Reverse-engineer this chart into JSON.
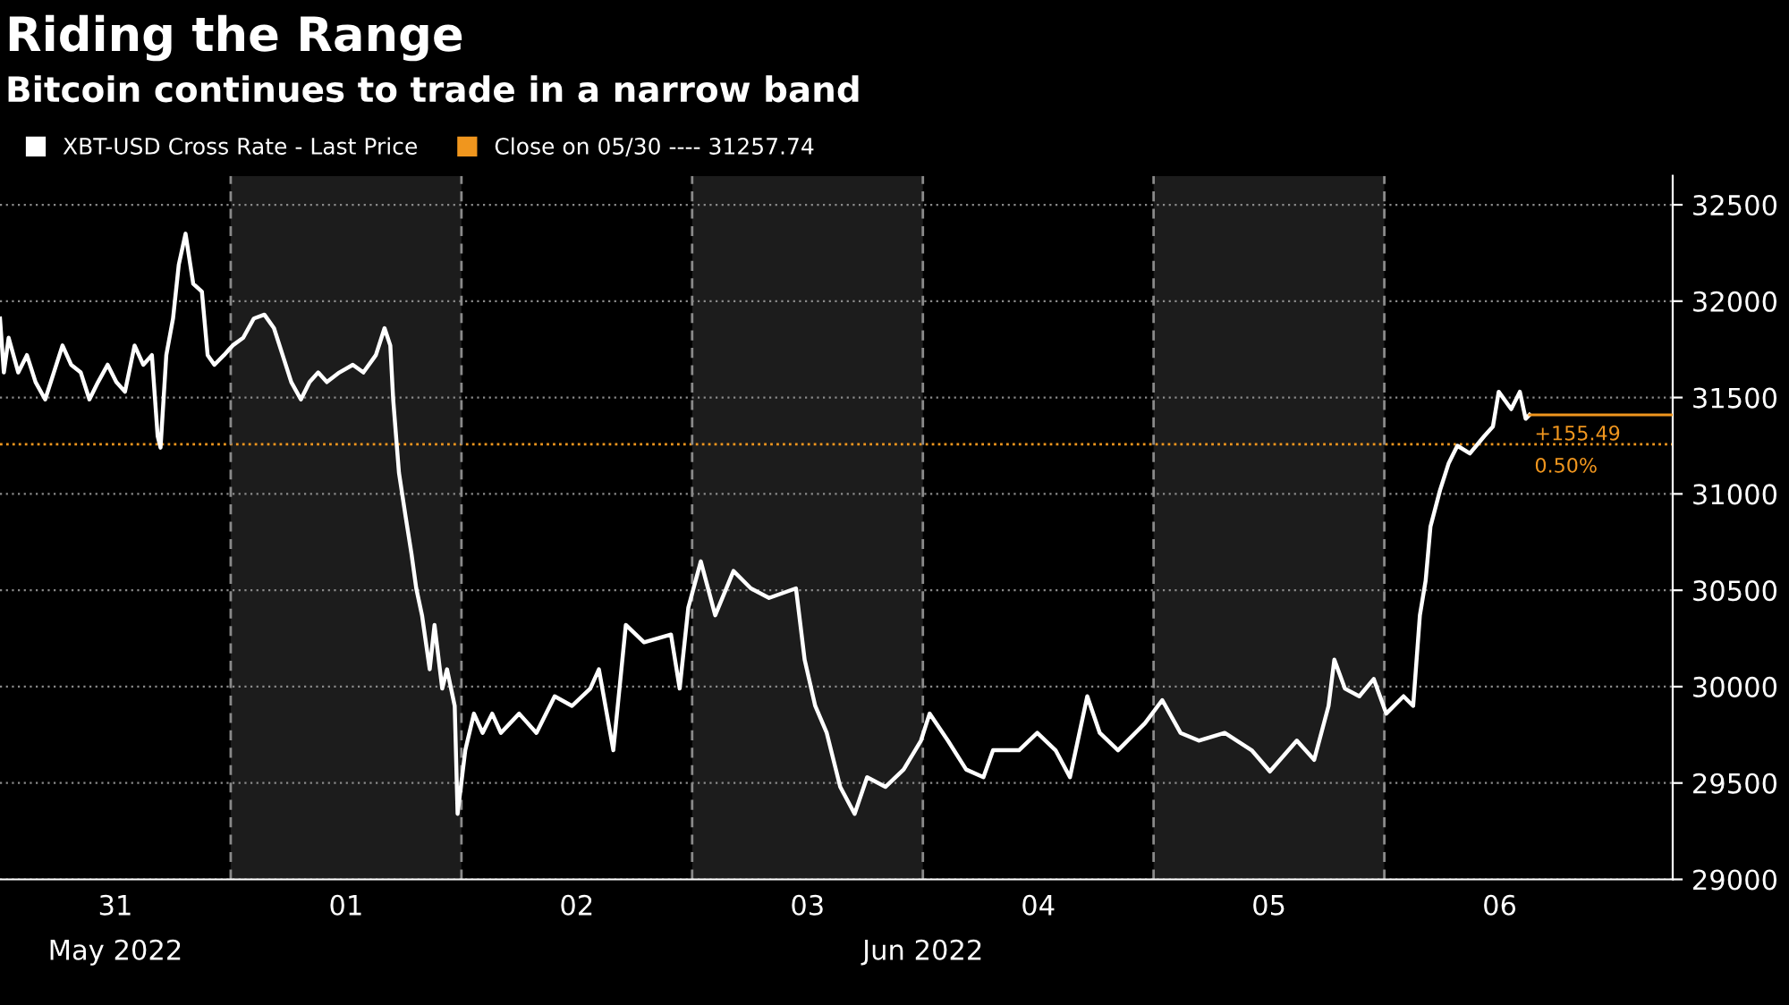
{
  "chart_data": {
    "type": "line",
    "title": "Riding the Range",
    "subtitle": "Bitcoin continues to trade in a narrow band",
    "series": [
      {
        "name": "XBT-USD Cross Rate - Last Price",
        "color": "#ffffff",
        "x": [
          "2022-05-31T00:00",
          "2022-05-31T00:24",
          "2022-05-31T00:54",
          "2022-05-31T01:54",
          "2022-05-31T02:48",
          "2022-05-31T03:42",
          "2022-05-31T04:42",
          "2022-05-31T05:36",
          "2022-05-31T06:30",
          "2022-05-31T07:24",
          "2022-05-31T08:24",
          "2022-05-31T09:18",
          "2022-05-31T10:12",
          "2022-05-31T11:12",
          "2022-05-31T12:06",
          "2022-05-31T13:00",
          "2022-05-31T14:00",
          "2022-05-31T14:54",
          "2022-05-31T15:48",
          "2022-05-31T16:24",
          "2022-05-31T16:42",
          "2022-05-31T17:18",
          "2022-05-31T18:00",
          "2022-05-31T18:36",
          "2022-05-31T19:18",
          "2022-05-31T20:06",
          "2022-05-31T21:00",
          "2022-05-31T21:36",
          "2022-05-31T22:18",
          "2022-05-31T23:18",
          "2022-06-01T00:12",
          "2022-06-01T01:18",
          "2022-06-01T02:24",
          "2022-06-01T03:30",
          "2022-06-01T04:30",
          "2022-06-01T05:24",
          "2022-06-01T06:18",
          "2022-06-01T07:18",
          "2022-06-01T08:12",
          "2022-06-01T09:06",
          "2022-06-01T10:00",
          "2022-06-01T11:18",
          "2022-06-01T12:42",
          "2022-06-01T13:48",
          "2022-06-01T15:06",
          "2022-06-01T16:00",
          "2022-06-01T16:36",
          "2022-06-01T16:54",
          "2022-06-01T17:30",
          "2022-06-01T18:12",
          "2022-06-01T18:48",
          "2022-06-01T19:18",
          "2022-06-01T19:54",
          "2022-06-01T20:42",
          "2022-06-01T21:12",
          "2022-06-01T22:00",
          "2022-06-01T22:30",
          "2022-06-01T23:18",
          "2022-06-01T23:36",
          "2022-06-02T00:24",
          "2022-06-02T01:18",
          "2022-06-02T02:12",
          "2022-06-02T03:12",
          "2022-06-02T04:06",
          "2022-06-02T06:00",
          "2022-06-02T07:48",
          "2022-06-02T09:42",
          "2022-06-02T11:30",
          "2022-06-02T13:24",
          "2022-06-02T14:18",
          "2022-06-02T15:48",
          "2022-06-02T17:06",
          "2022-06-02T19:00",
          "2022-06-02T21:48",
          "2022-06-02T22:42",
          "2022-06-02T23:36",
          "2022-06-03T00:54",
          "2022-06-03T02:24",
          "2022-06-03T04:18",
          "2022-06-03T06:06",
          "2022-06-03T08:00",
          "2022-06-03T10:48",
          "2022-06-03T11:42",
          "2022-06-03T12:48",
          "2022-06-03T14:00",
          "2022-06-03T15:24",
          "2022-06-03T16:54",
          "2022-06-03T18:12",
          "2022-06-03T20:06",
          "2022-06-03T22:00",
          "2022-06-03T23:48",
          "2022-06-04T00:42",
          "2022-06-04T02:36",
          "2022-06-04T04:30",
          "2022-06-04T06:18",
          "2022-06-04T07:18",
          "2022-06-04T10:00",
          "2022-06-04T11:54",
          "2022-06-04T13:48",
          "2022-06-04T15:18",
          "2022-06-04T17:06",
          "2022-06-04T18:24",
          "2022-06-04T20:18",
          "2022-06-04T23:06",
          "2022-06-05T00:54",
          "2022-06-05T02:48",
          "2022-06-05T04:42",
          "2022-06-05T07:24",
          "2022-06-05T10:12",
          "2022-06-05T12:06",
          "2022-06-05T14:54",
          "2022-06-05T16:42",
          "2022-06-05T18:12",
          "2022-06-05T18:48",
          "2022-06-05T19:54",
          "2022-06-05T21:24",
          "2022-06-05T22:54",
          "2022-06-06T00:12",
          "2022-06-06T02:00",
          "2022-06-06T03:00",
          "2022-06-06T03:42",
          "2022-06-06T04:18",
          "2022-06-06T04:48",
          "2022-06-06T05:48",
          "2022-06-06T06:42",
          "2022-06-06T07:36",
          "2022-06-06T08:54",
          "2022-06-06T10:24",
          "2022-06-06T11:18",
          "2022-06-06T11:54",
          "2022-06-06T13:12",
          "2022-06-06T14:06",
          "2022-06-06T14:42",
          "2022-06-06T15:06"
        ],
        "values": [
          31910,
          31630,
          31810,
          31630,
          31720,
          31580,
          31490,
          31630,
          31770,
          31670,
          31630,
          31490,
          31580,
          31670,
          31580,
          31530,
          31770,
          31670,
          31720,
          31300,
          31240,
          31720,
          31910,
          32190,
          32350,
          32090,
          32050,
          31720,
          31670,
          31720,
          31770,
          31810,
          31910,
          31930,
          31860,
          31720,
          31580,
          31490,
          31580,
          31630,
          31580,
          31630,
          31670,
          31630,
          31720,
          31860,
          31770,
          31490,
          31110,
          30880,
          30690,
          30510,
          30370,
          30090,
          30320,
          29990,
          30090,
          29900,
          29340,
          29670,
          29860,
          29760,
          29860,
          29760,
          29860,
          29760,
          29950,
          29900,
          29990,
          30090,
          29670,
          30320,
          30230,
          30270,
          29990,
          30410,
          30650,
          30370,
          30600,
          30510,
          30460,
          30510,
          30140,
          29900,
          29760,
          29480,
          29340,
          29530,
          29480,
          29570,
          29720,
          29860,
          29720,
          29570,
          29530,
          29670,
          29670,
          29760,
          29670,
          29530,
          29950,
          29760,
          29670,
          29810,
          29930,
          29760,
          29720,
          29760,
          29670,
          29560,
          29720,
          29620,
          29900,
          30140,
          29990,
          29950,
          30040,
          29860,
          29950,
          29900,
          30370,
          30550,
          30830,
          31020,
          31160,
          31250,
          31210,
          31300,
          31350,
          31530,
          31440,
          31530,
          31390,
          31410
        ]
      },
      {
        "color": "#f0961e",
        "x": [
          "2022-06-06T15:06",
          "2022-06-07T06:00"
        ],
        "values": [
          31410,
          31410
        ]
      }
    ],
    "ref_lines": [
      {
        "axis": "y",
        "value": 31257.74,
        "label": "Close on 05/30 ---- 31257.74",
        "color": "#f0961e",
        "line_style": "dotted"
      },
      {
        "axis": "x",
        "value": "2022-06-01",
        "label": null,
        "color": "#8a8a8a",
        "line_style": "dashed"
      },
      {
        "axis": "x",
        "value": "2022-06-02",
        "label": null,
        "color": "#8a8a8a",
        "line_style": "dashed"
      },
      {
        "axis": "x",
        "value": "2022-06-03",
        "label": null,
        "color": "#8a8a8a",
        "line_style": "dashed"
      },
      {
        "axis": "x",
        "value": "2022-06-04",
        "label": null,
        "color": "#8a8a8a",
        "line_style": "dashed"
      },
      {
        "axis": "x",
        "value": "2022-06-05",
        "label": null,
        "color": "#8a8a8a",
        "line_style": "dashed"
      },
      {
        "axis": "x",
        "value": "2022-06-06",
        "label": null,
        "color": "#8a8a8a",
        "line_style": "dashed"
      }
    ],
    "bands": [
      {
        "axis": "x",
        "from": "2022-06-01",
        "to": "2022-06-02",
        "label": null,
        "color": "#1c1c1c"
      },
      {
        "axis": "x",
        "from": "2022-06-03",
        "to": "2022-06-04",
        "label": null,
        "color": "#1c1c1c"
      },
      {
        "axis": "x",
        "from": "2022-06-05",
        "to": "2022-06-06",
        "label": null,
        "color": "#1c1c1c"
      }
    ],
    "annotations": [
      {
        "text": "+155.49",
        "x": "2022-06-06T15:06",
        "y": 31410
      },
      {
        "text": "0.50%",
        "x": "2022-06-06T15:06",
        "y": 31410
      }
    ],
    "xlim": [
      "2022-05-31T00:00",
      "2022-06-07T06:00"
    ],
    "xticks": [
      {
        "value": "2022-05-31T12:00",
        "label": "31"
      },
      {
        "value": "2022-06-01T12:00",
        "label": "01"
      },
      {
        "value": "2022-06-02T12:00",
        "label": "02"
      },
      {
        "value": "2022-06-03T12:00",
        "label": "03"
      },
      {
        "value": "2022-06-04T12:00",
        "label": "04"
      },
      {
        "value": "2022-06-05T12:00",
        "label": "05"
      },
      {
        "value": "2022-06-06T12:00",
        "label": "06"
      }
    ],
    "x2lim": [
      "2022-05-31T00:00",
      "2022-06-07T06:00"
    ],
    "x2ticks": [
      {
        "value": "2022-05-31T12:00",
        "label": "May 2022"
      },
      {
        "value": "2022-06-04T00:00",
        "label": "Jun 2022"
      }
    ],
    "ylim": [
      29000,
      32650
    ],
    "yticks": [
      29000,
      29500,
      30000,
      30500,
      31000,
      31500,
      32000,
      32500
    ],
    "grid": "y",
    "legend": "top left"
  }
}
